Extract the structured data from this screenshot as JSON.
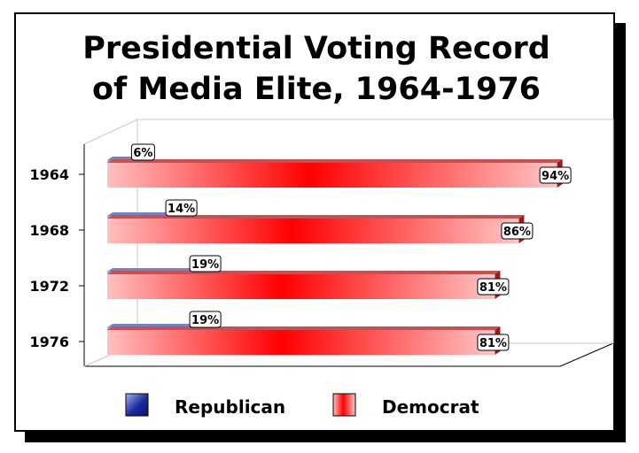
{
  "chart_data": {
    "type": "bar",
    "orientation": "horizontal",
    "title_lines": [
      "Presidential Voting Record",
      "of Media Elite, 1964-1976"
    ],
    "categories": [
      "1964",
      "1968",
      "1972",
      "1976"
    ],
    "series": [
      {
        "name": "Republican",
        "values": [
          6,
          14,
          19,
          19
        ],
        "labels": [
          "6%",
          "14%",
          "19%",
          "19%"
        ],
        "color": "#1a2a9c"
      },
      {
        "name": "Democrat",
        "values": [
          94,
          86,
          81,
          81
        ],
        "labels": [
          "94%",
          "86%",
          "81%",
          "81%"
        ],
        "color": "#ff0000"
      }
    ],
    "xlim": [
      0,
      100
    ],
    "grid": false,
    "legend_position": "bottom"
  }
}
